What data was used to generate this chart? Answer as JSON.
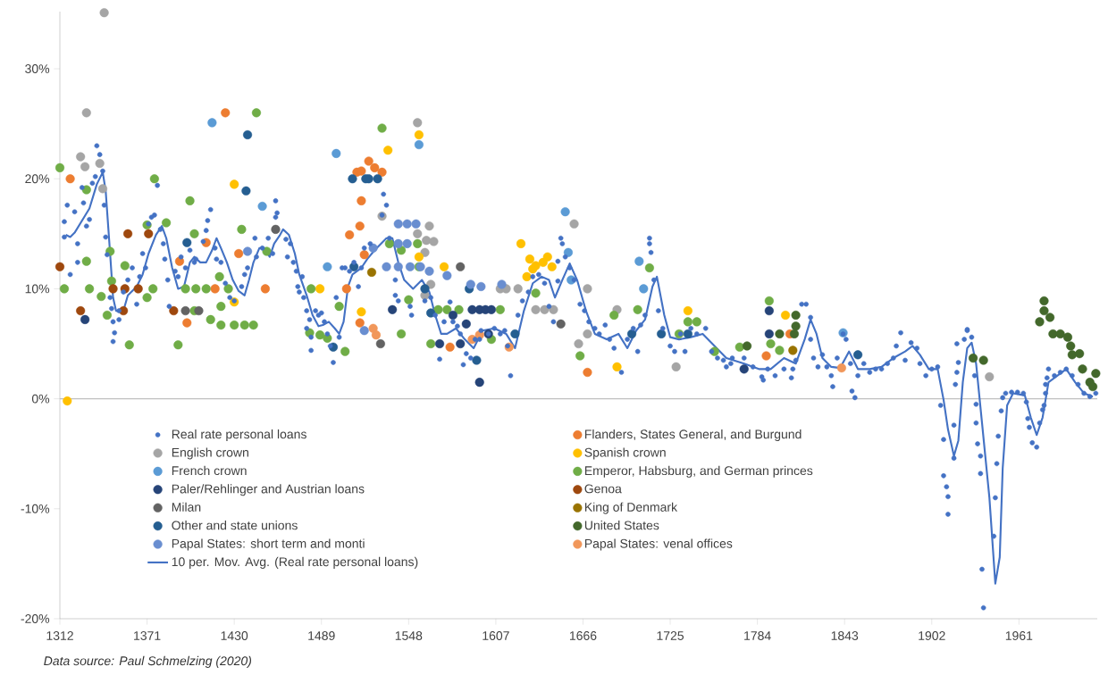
{
  "chart_data": {
    "type": "scatter",
    "marker": "circle",
    "line_style": "solid",
    "legend": "bottom left",
    "xlim": [
      1312,
      2014
    ],
    "xticks": [
      1312,
      1371,
      1430,
      1489,
      1548,
      1607,
      1666,
      1725,
      1784,
      1843,
      1902,
      1961
    ],
    "ylim": [
      -20,
      35.2
    ],
    "yticks": [
      {
        "value": -20,
        "label": "-20%"
      },
      {
        "value": -10,
        "label": "-10%"
      },
      {
        "value": 0,
        "label": "0%"
      },
      {
        "value": 10,
        "label": "10%"
      },
      {
        "value": 20,
        "label": "20%"
      },
      {
        "value": 30,
        "label": "30%"
      }
    ],
    "ref_lines": [
      {
        "axis": "y",
        "value": 0,
        "color": "#bfbfbf"
      }
    ],
    "annotations": [
      "Data source: Paul Schmelzing (2020)"
    ],
    "series": [
      {
        "name": "Real rate personal loans",
        "color": "#4472c4",
        "x": [
          1315,
          1315,
          1317,
          1319,
          1322,
          1324,
          1324,
          1327,
          1328,
          1330,
          1332,
          1334,
          1336,
          1337,
          1339,
          1341,
          1342,
          1343,
          1344,
          1346,
          1347,
          1348,
          1349,
          1348,
          1352,
          1352,
          1355,
          1358,
          1361,
          1364,
          1366,
          1368,
          1370,
          1372,
          1374,
          1376,
          1378,
          1380,
          1382,
          1383,
          1385,
          1386,
          1390,
          1392,
          1394,
          1397,
          1400,
          1403,
          1404,
          1409,
          1411,
          1412,
          1414,
          1417,
          1418,
          1421,
          1424,
          1427,
          1430,
          1435,
          1437,
          1439,
          1444,
          1445,
          1449,
          1453,
          1456,
          1458,
          1459,
          1458,
          1465,
          1466,
          1468,
          1470,
          1472,
          1473,
          1474,
          1476,
          1477,
          1479,
          1479,
          1481,
          1482,
          1482,
          1485,
          1487,
          1489,
          1491,
          1493,
          1495,
          1497,
          1499,
          1501,
          1503,
          1505,
          1508,
          1511,
          1514,
          1516,
          1518,
          1522,
          1531,
          1533,
          1530,
          1535,
          1539,
          1541,
          1539,
          1549,
          1550,
          1559,
          1563,
          1566,
          1569,
          1572,
          1576,
          1578,
          1581,
          1583,
          1585,
          1587,
          1590,
          1593,
          1596,
          1597,
          1602,
          1606,
          1610,
          1613,
          1615,
          1617,
          1622,
          1625,
          1629,
          1632,
          1636,
          1640,
          1643,
          1646,
          1649,
          1649,
          1651,
          1652,
          1654,
          1657,
          1660,
          1664,
          1667,
          1670,
          1674,
          1677,
          1681,
          1684,
          1687,
          1692,
          1696,
          1700,
          1703,
          1705,
          1708,
          1711,
          1711,
          1712,
          1714,
          1717,
          1720,
          1725,
          1728,
          1732,
          1735,
          1739,
          1743,
          1749,
          1753,
          1757,
          1761,
          1766,
          1763,
          1767,
          1775,
          1781,
          1787,
          1788,
          1791,
          1796,
          1802,
          1807,
          1808,
          1810,
          1814,
          1817,
          1820,
          1820,
          1822,
          1825,
          1828,
          1831,
          1834,
          1835,
          1838,
          1842,
          1844,
          1847,
          1848,
          1850,
          1852,
          1856,
          1860,
          1864,
          1868,
          1872,
          1876,
          1878,
          1881,
          1884,
          1888,
          1892,
          1894,
          1898,
          1902,
          1906,
          1908,
          1910,
          1910,
          1912,
          1913,
          1913,
          1917,
          1917,
          1918,
          1919,
          1920,
          1919,
          1924,
          1926,
          1926,
          1929,
          1931,
          1932,
          1932,
          1933,
          1935,
          1935,
          1936,
          1937,
          1944,
          1945,
          1946,
          1947,
          1949,
          1950,
          1952,
          1956,
          1960,
          1964,
          1966,
          1967,
          1968,
          1970,
          1973,
          1975,
          1977,
          1978,
          1979,
          1979,
          1980,
          1981,
          1985,
          1989,
          1993,
          1997,
          2001,
          2005,
          2009,
          2013
        ],
        "values": [
          16.1,
          14.7,
          17.6,
          11.3,
          17.0,
          14.1,
          12.4,
          19.2,
          17.8,
          15.7,
          16.3,
          19.6,
          20.2,
          23.0,
          22.2,
          20.7,
          17.6,
          14.7,
          13.1,
          9.2,
          8.2,
          7.0,
          6.0,
          5.2,
          8.0,
          7.2,
          9.7,
          10.8,
          11.9,
          8.6,
          11.1,
          13.2,
          11.9,
          15.9,
          16.5,
          16.7,
          19.4,
          15.4,
          14.1,
          12.7,
          10.8,
          8.4,
          11.6,
          11.1,
          12.9,
          11.9,
          13.5,
          12.4,
          12.7,
          14.3,
          15.3,
          16.2,
          17.2,
          13.7,
          12.7,
          12.4,
          10.5,
          9.2,
          8.9,
          10.2,
          11.3,
          11.9,
          14.6,
          12.9,
          13.7,
          14.6,
          13.2,
          16.5,
          16.9,
          18.0,
          14.5,
          12.9,
          14.1,
          12.4,
          11.6,
          10.2,
          9.7,
          11.1,
          9.2,
          8.0,
          6.4,
          7.2,
          5.6,
          4.4,
          8.0,
          7.6,
          7.8,
          7.0,
          5.9,
          4.8,
          3.3,
          9.2,
          5.6,
          11.9,
          11.9,
          11.6,
          12.4,
          10.2,
          11.9,
          13.7,
          14.1,
          18.6,
          17.6,
          16.7,
          14.6,
          10.8,
          8.9,
          9.4,
          8.4,
          7.6,
          8.9,
          9.2,
          7.6,
          3.6,
          7.0,
          8.8,
          7.0,
          6.6,
          5.9,
          3.1,
          4.1,
          3.7,
          5.4,
          5.4,
          6.2,
          5.9,
          6.4,
          5.9,
          6.2,
          4.8,
          2.1,
          7.6,
          8.9,
          9.7,
          11.1,
          11.3,
          10.5,
          8.4,
          7.0,
          10.7,
          12.5,
          14.6,
          14.1,
          12.9,
          11.9,
          10.8,
          8.6,
          8.0,
          7.0,
          6.4,
          5.9,
          6.7,
          5.4,
          4.6,
          2.4,
          5.4,
          6.4,
          4.3,
          6.7,
          7.6,
          14.6,
          14.1,
          13.3,
          10.8,
          8.0,
          6.4,
          4.8,
          4.3,
          5.9,
          4.3,
          6.4,
          5.9,
          6.4,
          4.3,
          3.7,
          3.5,
          3.2,
          2.9,
          3.7,
          3.7,
          2.9,
          2.0,
          1.7,
          2.7,
          2.1,
          2.7,
          1.9,
          2.7,
          3.5,
          8.6,
          8.6,
          7.4,
          5.4,
          3.7,
          2.9,
          4.0,
          2.9,
          2.1,
          1.1,
          3.7,
          5.9,
          5.4,
          3.2,
          0.7,
          0.1,
          2.1,
          3.2,
          2.4,
          2.7,
          2.7,
          3.2,
          3.7,
          4.8,
          6.0,
          3.5,
          5.1,
          4.6,
          3.2,
          2.1,
          2.7,
          2.9,
          -0.6,
          -3.7,
          -7.0,
          -8.0,
          -8.9,
          -10.5,
          -5.4,
          -2.4,
          1.3,
          2.4,
          3.3,
          5.0,
          5.4,
          6.3,
          6.2,
          5.6,
          2.1,
          -0.5,
          -2.2,
          -4.1,
          -5.2,
          -6.8,
          -15.5,
          -19.0,
          -12.5,
          -9.0,
          -5.9,
          -3.4,
          -1.1,
          0.1,
          0.5,
          0.6,
          0.6,
          0.5,
          -0.3,
          -1.8,
          -2.6,
          -4.0,
          -4.4,
          -2.2,
          -1.0,
          -0.6,
          0.5,
          1.3,
          1.9,
          2.7,
          2.1,
          2.4,
          2.7,
          2.1,
          1.3,
          0.5,
          0.2,
          0.5
        ]
      },
      {
        "name": "Flanders, States General, and Burgund",
        "color": "#ed7d31",
        "x": [
          1319,
          1424,
          1411,
          1417,
          1393,
          1398,
          1433,
          1451,
          1508,
          1515,
          1516,
          1513,
          1518,
          1506,
          1516,
          1521,
          1525,
          1530,
          1515,
          1576,
          1669,
          1790,
          1806
        ],
        "values": [
          20.0,
          26.0,
          14.2,
          10.0,
          12.5,
          6.9,
          13.2,
          10.0,
          14.9,
          15.7,
          18.0,
          20.6,
          13.1,
          10.0,
          20.7,
          21.6,
          21.0,
          20.6,
          6.9,
          4.7,
          2.4,
          3.9,
          5.9
        ]
      },
      {
        "name": "English crown",
        "color": "#a5a5a5",
        "x": [
          1342,
          1330,
          1326,
          1329,
          1339,
          1341,
          1554,
          1530,
          1562,
          1554,
          1560,
          1565,
          1559,
          1563,
          1559,
          1610,
          1614,
          1622,
          1634,
          1640,
          1646,
          1660,
          1663,
          1669,
          1669,
          1689,
          1729,
          1941
        ],
        "values": [
          35.1,
          26.0,
          22.0,
          21.1,
          21.4,
          19.1,
          25.1,
          16.6,
          15.7,
          15.0,
          14.4,
          14.3,
          13.3,
          10.4,
          9.4,
          10.0,
          10.0,
          10.0,
          8.1,
          8.1,
          8.1,
          15.9,
          5.0,
          5.9,
          10.0,
          8.1,
          2.9,
          2.0
        ]
      },
      {
        "name": "Spanish crown",
        "color": "#ffc000",
        "x": [
          1317,
          1430,
          1430,
          1488,
          1516,
          1534,
          1555,
          1555,
          1572,
          1624,
          1628,
          1630,
          1634,
          1639,
          1642,
          1645,
          1632,
          1689,
          1737,
          1803
        ],
        "values": [
          -0.2,
          19.5,
          8.8,
          10.0,
          7.9,
          22.6,
          24.0,
          12.9,
          12.0,
          14.1,
          11.1,
          12.7,
          12.1,
          12.4,
          12.9,
          12.0,
          11.8,
          2.9,
          8.0,
          7.6
        ]
      },
      {
        "name": "French crown",
        "color": "#5b9bd5",
        "x": [
          1415,
          1449,
          1499,
          1493,
          1555,
          1654,
          1656,
          1704,
          1707,
          1658,
          1842
        ],
        "values": [
          25.1,
          17.5,
          22.3,
          12.0,
          23.1,
          17.0,
          13.3,
          12.5,
          10.0,
          10.8,
          6.0
        ]
      },
      {
        "name": "Emperor, Habsburg, and German princes",
        "color": "#70ad47",
        "x": [
          1312,
          1315,
          1330,
          1330,
          1332,
          1340,
          1344,
          1346,
          1347,
          1356,
          1359,
          1371,
          1371,
          1376,
          1375,
          1384,
          1392,
          1397,
          1400,
          1403,
          1404,
          1403,
          1411,
          1414,
          1420,
          1421,
          1421,
          1426,
          1430,
          1435,
          1437,
          1443,
          1445,
          1452,
          1482,
          1481,
          1488,
          1493,
          1501,
          1505,
          1530,
          1535,
          1543,
          1554,
          1543,
          1548,
          1555,
          1568,
          1574,
          1582,
          1610,
          1604,
          1563,
          1634,
          1664,
          1687,
          1703,
          1711,
          1731,
          1737,
          1743,
          1755,
          1792,
          1793,
          1799,
          1772
        ],
        "values": [
          21.0,
          10.0,
          19.0,
          12.5,
          10.0,
          9.3,
          7.6,
          13.4,
          10.7,
          12.1,
          4.9,
          15.8,
          9.2,
          20.0,
          10.0,
          16.0,
          4.9,
          10.0,
          18.0,
          15.0,
          10.0,
          8.0,
          10.0,
          7.2,
          11.1,
          8.4,
          6.7,
          10.0,
          6.7,
          15.4,
          6.7,
          6.7,
          26.0,
          13.4,
          10.0,
          6.0,
          5.8,
          5.5,
          8.4,
          4.3,
          24.6,
          14.1,
          13.5,
          14.1,
          5.9,
          9.0,
          12.0,
          8.1,
          8.1,
          8.1,
          8.1,
          5.4,
          5.0,
          9.6,
          3.9,
          7.6,
          8.1,
          11.9,
          5.9,
          7.0,
          7.0,
          4.3,
          8.9,
          5.0,
          4.4,
          4.7
        ]
      },
      {
        "name": "Paler/Rehlinger and Austrian loans",
        "color": "#264478",
        "x": [
          1329,
          1537,
          1569,
          1578,
          1583,
          1591,
          1596,
          1600,
          1604,
          1587,
          1596,
          1602,
          1792,
          1792,
          1775
        ],
        "values": [
          7.2,
          8.1,
          5.0,
          7.6,
          5.0,
          8.1,
          8.1,
          8.1,
          8.1,
          6.8,
          1.5,
          5.9,
          8.0,
          5.9,
          2.7
        ]
      },
      {
        "name": "Genoa",
        "color": "#9e480e",
        "x": [
          1312,
          1326,
          1358,
          1372,
          1348,
          1356,
          1365,
          1355,
          1389
        ],
        "values": [
          12.0,
          8.0,
          15.0,
          15.0,
          10.0,
          10.0,
          10.0,
          8.0,
          8.0
        ]
      },
      {
        "name": "Milan",
        "color": "#636363",
        "x": [
          1397,
          1406,
          1458,
          1529,
          1583,
          1651
        ],
        "values": [
          8.0,
          8.0,
          15.4,
          5.0,
          12.0,
          6.8
        ]
      },
      {
        "name": "King of Denmark",
        "color": "#997300",
        "x": [
          1523,
          1808
        ],
        "values": [
          11.5,
          4.4
        ]
      },
      {
        "name": "Other and state unions",
        "color": "#255e91",
        "x": [
          1439,
          1438,
          1398,
          1510,
          1521,
          1511,
          1497,
          1519,
          1527,
          1559,
          1563,
          1589,
          1620,
          1594,
          1699,
          1719,
          1737,
          1852
        ],
        "values": [
          24.0,
          18.9,
          14.2,
          20.0,
          20.0,
          12.0,
          4.7,
          20.0,
          20.0,
          10.0,
          7.8,
          10.0,
          5.9,
          3.5,
          5.9,
          5.9,
          5.9,
          4.0
        ]
      },
      {
        "name": "United States",
        "color": "#43682b",
        "x": [
          1799,
          1810,
          1810,
          1809,
          1777,
          1930,
          1937,
          1978,
          1978,
          1975,
          1982,
          1984,
          1989,
          1994,
          1996,
          1997,
          2002,
          2004,
          2009,
          2013,
          2011
        ],
        "values": [
          5.9,
          7.6,
          6.6,
          5.9,
          4.8,
          3.7,
          3.5,
          8.9,
          8.0,
          7.0,
          7.4,
          5.9,
          5.9,
          5.6,
          4.8,
          4.0,
          4.1,
          2.7,
          1.5,
          2.3,
          1.1
        ]
      },
      {
        "name": "Papal States: short term and monti",
        "color": "#698ed0",
        "x": [
          1541,
          1547,
          1553,
          1541,
          1547,
          1533,
          1541,
          1549,
          1556,
          1562,
          1574,
          1590,
          1597,
          1611,
          1439,
          1524,
          1518
        ],
        "values": [
          15.9,
          15.9,
          15.9,
          14.1,
          14.1,
          12.0,
          12.0,
          12.0,
          12.0,
          11.6,
          11.2,
          10.4,
          10.2,
          10.4,
          13.4,
          13.7,
          6.2
        ]
      },
      {
        "name": "Papal States: venal offices",
        "color": "#f1975a",
        "x": [
          1524,
          1526,
          1591,
          1596,
          1616,
          1841
        ],
        "values": [
          6.4,
          5.8,
          5.4,
          5.8,
          4.7,
          2.8
        ]
      },
      {
        "name": "10 per. Mov. Avg. (Real rate personal loans)",
        "type": "line",
        "marker": "none",
        "color": "#4472c4",
        "x": [
          1316,
          1319,
          1322,
          1332,
          1337,
          1341,
          1343,
          1346,
          1348,
          1350,
          1355,
          1358,
          1364,
          1368,
          1372,
          1377,
          1381,
          1384,
          1388,
          1392,
          1396,
          1400,
          1403,
          1407,
          1411,
          1415,
          1418,
          1421,
          1425,
          1429,
          1433,
          1437,
          1440,
          1443,
          1447,
          1450,
          1454,
          1457,
          1461,
          1463,
          1467,
          1471,
          1474,
          1479,
          1483,
          1487,
          1490,
          1494,
          1498,
          1501,
          1504,
          1507,
          1510,
          1516,
          1520,
          1525,
          1533,
          1537,
          1541,
          1545,
          1551,
          1557,
          1562,
          1566,
          1570,
          1574,
          1580,
          1586,
          1592,
          1598,
          1606,
          1614,
          1620,
          1626,
          1632,
          1638,
          1643,
          1647,
          1652,
          1657,
          1662,
          1668,
          1674,
          1682,
          1690,
          1696,
          1702,
          1708,
          1713,
          1716,
          1721,
          1725,
          1731,
          1739,
          1747,
          1755,
          1763,
          1775,
          1785,
          1793,
          1802,
          1810,
          1816,
          1820,
          1824,
          1828,
          1834,
          1840,
          1846,
          1852,
          1860,
          1868,
          1876,
          1884,
          1889,
          1894,
          1900,
          1906,
          1910,
          1913,
          1917,
          1920,
          1923,
          1926,
          1929,
          1932,
          1936,
          1941,
          1945,
          1948,
          1950,
          1953,
          1957,
          1965,
          1969,
          1973,
          1977,
          1981,
          1987,
          1993,
          1999,
          2005,
          2011
        ],
        "values": [
          14.9,
          14.7,
          15.1,
          17.3,
          19.5,
          20.6,
          18.9,
          13.2,
          9.2,
          8.0,
          8.0,
          9.4,
          10.2,
          11.3,
          13.2,
          14.9,
          15.7,
          14.6,
          11.9,
          10.0,
          10.2,
          12.4,
          12.9,
          12.4,
          12.4,
          13.5,
          14.6,
          13.7,
          12.4,
          10.8,
          9.8,
          9.4,
          10.8,
          12.4,
          13.7,
          13.7,
          12.9,
          14.1,
          14.9,
          15.4,
          14.9,
          13.2,
          11.3,
          9.4,
          7.6,
          6.6,
          6.7,
          7.0,
          6.4,
          5.9,
          7.0,
          10.2,
          11.3,
          11.9,
          12.7,
          13.5,
          14.6,
          14.6,
          12.4,
          10.8,
          10.0,
          10.8,
          9.7,
          7.6,
          5.9,
          5.9,
          6.4,
          5.4,
          4.6,
          6.2,
          6.4,
          5.9,
          4.6,
          8.0,
          10.5,
          11.1,
          10.8,
          9.2,
          10.8,
          12.3,
          10.8,
          8.0,
          5.9,
          5.4,
          5.9,
          4.6,
          6.2,
          7.2,
          10.2,
          11.1,
          7.6,
          5.6,
          5.4,
          5.6,
          5.9,
          4.8,
          3.7,
          3.2,
          2.7,
          2.7,
          3.7,
          3.2,
          5.4,
          7.2,
          5.9,
          3.7,
          2.9,
          2.8,
          4.3,
          2.7,
          2.7,
          2.9,
          3.7,
          4.3,
          4.8,
          4.0,
          2.7,
          2.7,
          -0.1,
          -2.8,
          -5.2,
          -3.8,
          1.5,
          4.6,
          5.1,
          3.2,
          -2.2,
          -9.0,
          -16.8,
          -14.4,
          -6.3,
          -0.6,
          0.5,
          0.3,
          -1.7,
          -3.3,
          -1.7,
          1.5,
          2.1,
          2.7,
          1.5,
          0.5,
          0.2
        ]
      }
    ]
  }
}
